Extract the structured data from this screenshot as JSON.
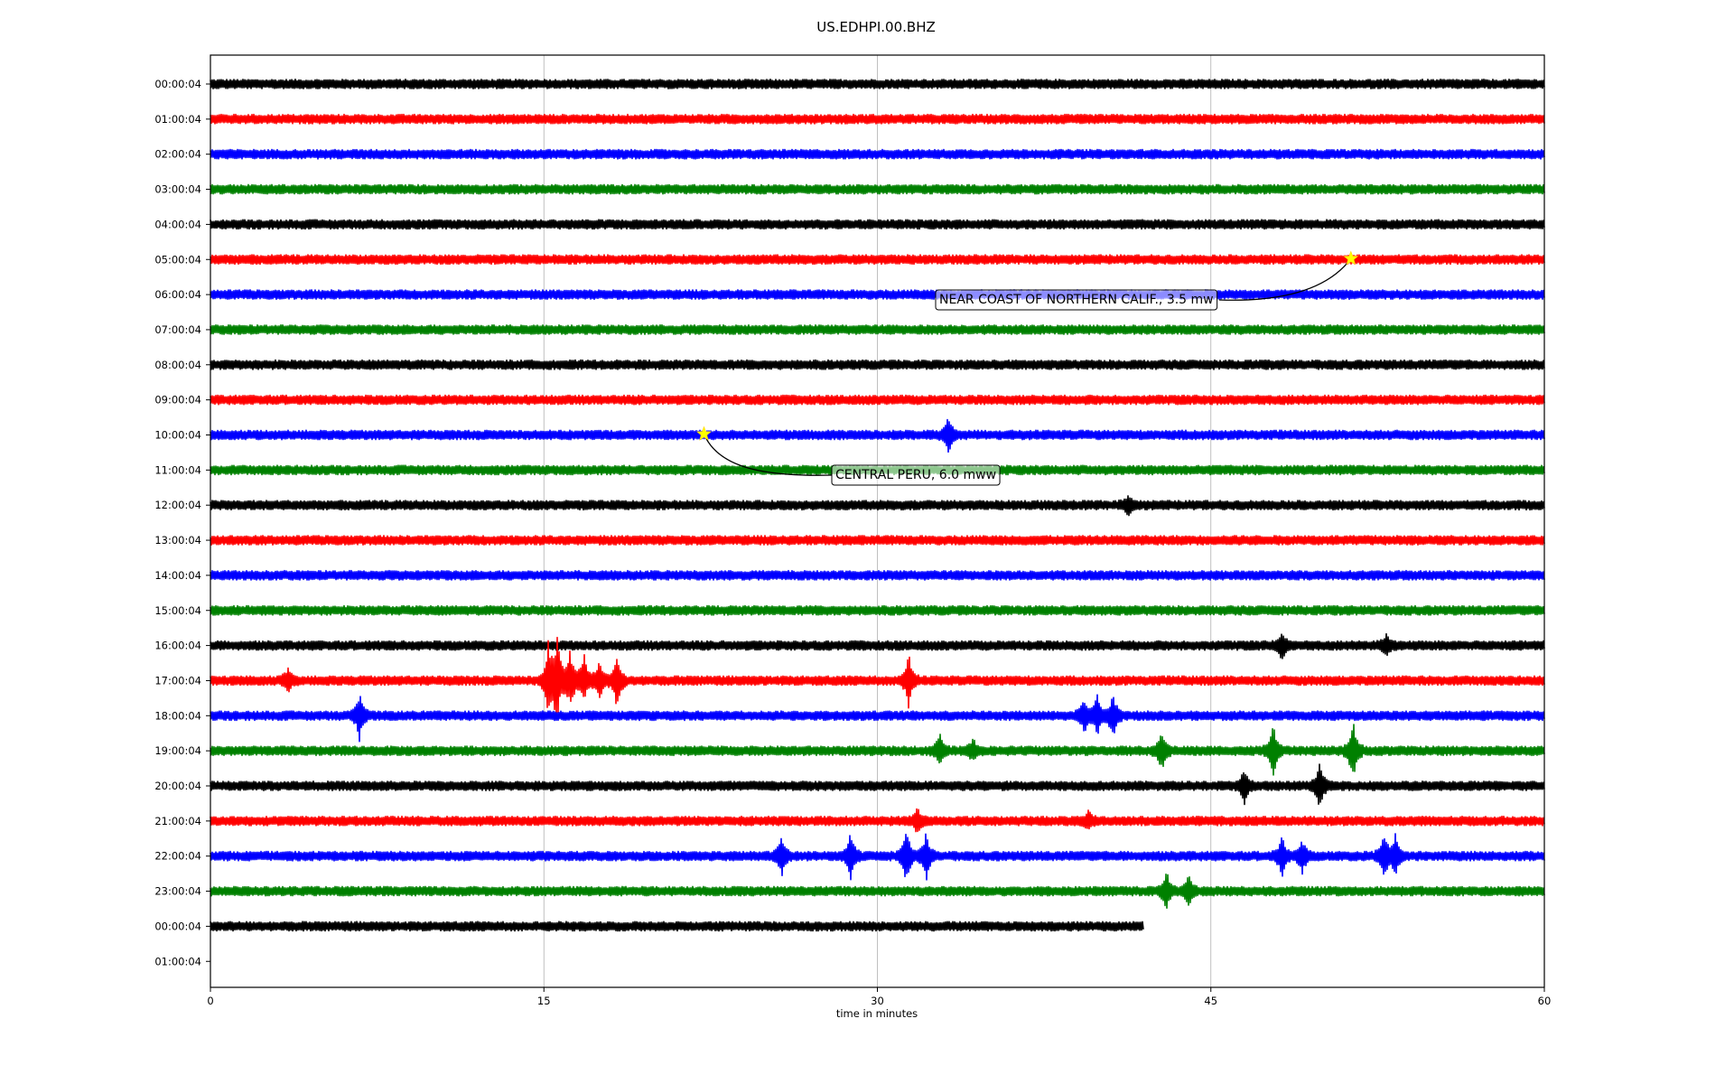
{
  "chart_data": {
    "type": "line",
    "title": "US.EDHPI.00.BHZ",
    "xlabel": "time in minutes",
    "ylabel": "",
    "xlim": [
      0,
      60
    ],
    "x_ticks": [
      0,
      15,
      30,
      45,
      60
    ],
    "x_tick_labels": [
      "0",
      "15",
      "30",
      "45",
      "60"
    ],
    "grid": "vertical",
    "row_labels": [
      "00:00:04",
      "01:00:04",
      "02:00:04",
      "03:00:04",
      "04:00:04",
      "05:00:04",
      "06:00:04",
      "07:00:04",
      "08:00:04",
      "09:00:04",
      "10:00:04",
      "11:00:04",
      "12:00:04",
      "13:00:04",
      "14:00:04",
      "15:00:04",
      "16:00:04",
      "17:00:04",
      "18:00:04",
      "19:00:04",
      "20:00:04",
      "21:00:04",
      "22:00:04",
      "23:00:04",
      "00:00:04",
      "01:00:04"
    ],
    "trace_colors": [
      "#000000",
      "#ff0000",
      "#0000ff",
      "#008000"
    ],
    "trace_end_minutes": [
      60,
      60,
      60,
      60,
      60,
      60,
      60,
      60,
      60,
      60,
      60,
      60,
      60,
      60,
      60,
      60,
      60,
      60,
      60,
      60,
      60,
      60,
      60,
      60,
      42,
      0
    ],
    "bursts": [
      {
        "row": 10,
        "minute": 33.2,
        "amplitude": 1.0
      },
      {
        "row": 12,
        "minute": 41.3,
        "amplitude": 0.6
      },
      {
        "row": 16,
        "minute": 48.2,
        "amplitude": 0.8
      },
      {
        "row": 16,
        "minute": 52.9,
        "amplitude": 0.6
      },
      {
        "row": 17,
        "minute": 3.5,
        "amplitude": 0.7
      },
      {
        "row": 17,
        "minute": 15.2,
        "amplitude": 2.2
      },
      {
        "row": 17,
        "minute": 15.6,
        "amplitude": 3.0
      },
      {
        "row": 17,
        "minute": 16.2,
        "amplitude": 2.0
      },
      {
        "row": 17,
        "minute": 16.8,
        "amplitude": 1.6
      },
      {
        "row": 17,
        "minute": 17.5,
        "amplitude": 1.2
      },
      {
        "row": 17,
        "minute": 18.3,
        "amplitude": 1.8
      },
      {
        "row": 17,
        "minute": 31.4,
        "amplitude": 1.6
      },
      {
        "row": 18,
        "minute": 6.7,
        "amplitude": 1.4
      },
      {
        "row": 18,
        "minute": 39.3,
        "amplitude": 1.0
      },
      {
        "row": 18,
        "minute": 39.9,
        "amplitude": 1.2
      },
      {
        "row": 18,
        "minute": 40.6,
        "amplitude": 1.4
      },
      {
        "row": 19,
        "minute": 32.8,
        "amplitude": 1.0
      },
      {
        "row": 19,
        "minute": 34.3,
        "amplitude": 0.6
      },
      {
        "row": 19,
        "minute": 42.8,
        "amplitude": 1.2
      },
      {
        "row": 19,
        "minute": 47.8,
        "amplitude": 1.6
      },
      {
        "row": 19,
        "minute": 51.4,
        "amplitude": 2.0
      },
      {
        "row": 20,
        "minute": 46.5,
        "amplitude": 1.0
      },
      {
        "row": 20,
        "minute": 49.9,
        "amplitude": 1.4
      },
      {
        "row": 21,
        "minute": 31.8,
        "amplitude": 0.7
      },
      {
        "row": 21,
        "minute": 39.5,
        "amplitude": 0.5
      },
      {
        "row": 22,
        "minute": 25.7,
        "amplitude": 1.2
      },
      {
        "row": 22,
        "minute": 28.8,
        "amplitude": 1.4
      },
      {
        "row": 22,
        "minute": 31.3,
        "amplitude": 1.8
      },
      {
        "row": 22,
        "minute": 32.2,
        "amplitude": 1.4
      },
      {
        "row": 22,
        "minute": 48.2,
        "amplitude": 1.2
      },
      {
        "row": 22,
        "minute": 49.1,
        "amplitude": 1.1
      },
      {
        "row": 22,
        "minute": 52.8,
        "amplitude": 1.4
      },
      {
        "row": 22,
        "minute": 53.3,
        "amplitude": 1.2
      },
      {
        "row": 23,
        "minute": 43.0,
        "amplitude": 1.2
      },
      {
        "row": 23,
        "minute": 44.0,
        "amplitude": 0.9
      }
    ],
    "events": [
      {
        "row": 5,
        "minute": 51.3,
        "label": "NEAR COAST OF NORTHERN CALIF., 3.5 mw",
        "color": "#4d4dff"
      },
      {
        "row": 10,
        "minute": 22.2,
        "label": "CENTRAL PERU, 6.0 mww",
        "color": "#9bbf9b"
      }
    ]
  }
}
